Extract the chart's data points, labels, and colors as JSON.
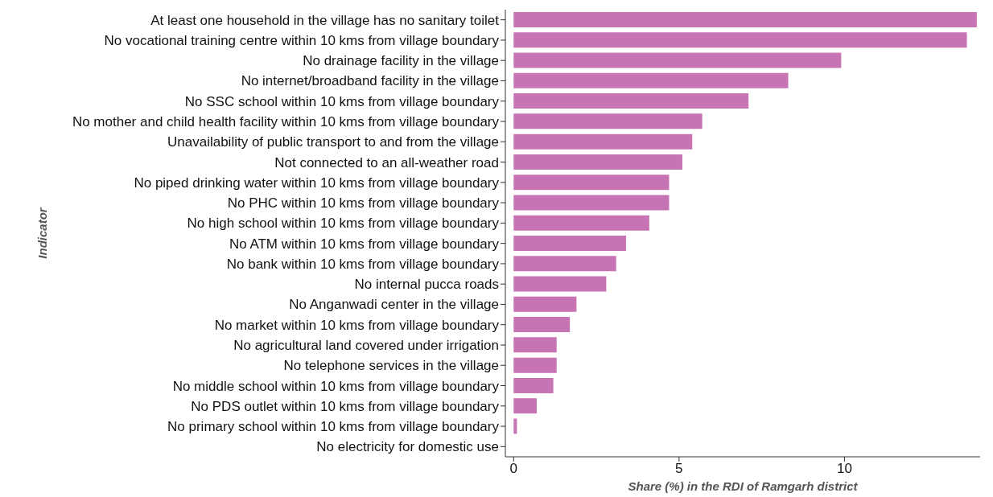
{
  "chart_data": {
    "type": "bar",
    "orientation": "horizontal",
    "xlabel": "Share (%) in the RDI of Ramgarh district",
    "ylabel": "Indicator",
    "categories": [
      "At least one household in the village has no sanitary toilet",
      "No vocational training centre within 10 kms from village boundary",
      "No drainage facility in the village",
      "No internet/broadband facility in the village",
      "No SSC school within 10 kms from village boundary",
      "No mother and child health facility within 10 kms from village boundary",
      "Unavailability of public transport to and from the village",
      "Not connected to an all-weather road",
      "No piped drinking water within 10 kms from village boundary",
      "No PHC within 10 kms from village boundary",
      "No high school within 10 kms from village boundary",
      "No ATM within 10 kms from village boundary",
      "No bank within 10 kms from village boundary",
      "No internal pucca roads",
      "No Anganwadi center in the village",
      "No market within 10 kms from village boundary",
      "No agricultural land covered under irrigation",
      "No telephone services in the village",
      "No middle school within 10 kms from village boundary",
      "No PDS outlet within 10 kms from village boundary",
      "No primary school within 10 kms from village boundary",
      "No electricity for domestic use"
    ],
    "values": [
      14.0,
      13.7,
      9.9,
      8.3,
      7.1,
      5.7,
      5.4,
      5.1,
      4.7,
      4.7,
      4.1,
      3.4,
      3.1,
      2.8,
      1.9,
      1.7,
      1.3,
      1.3,
      1.2,
      0.7,
      0.1,
      0
    ],
    "color": "#c774b4",
    "xlim": [
      -0.25,
      14.1
    ],
    "xticks": [
      0,
      5,
      10
    ],
    "grid": false,
    "legend": false
  }
}
